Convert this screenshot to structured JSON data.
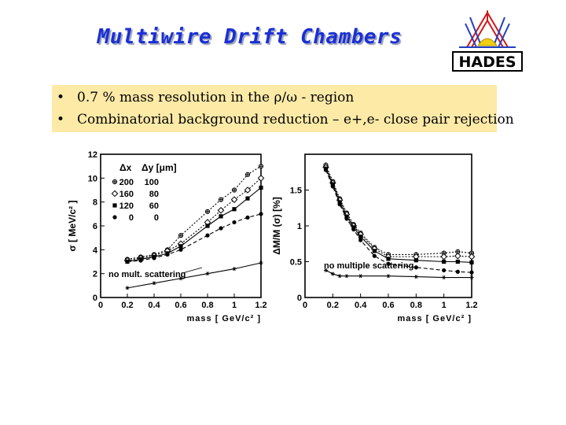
{
  "slide": {
    "title": "Multiwire Drift Chambers",
    "logo_text": "HADES",
    "bullets": [
      "0.7 % mass resolution in the ρ/ω - region",
      "Combinatorial background reduction – e+,e- close pair rejection"
    ]
  },
  "colors": {
    "title": "#1a2fd6",
    "bullet_box": "#fdeaa7",
    "logo_red": "#d01818",
    "logo_yellow": "#f0d010",
    "logo_blue": "#2040c0"
  },
  "chart_data": [
    {
      "type": "line",
      "ylabel": "σ [ MeV/c² ]",
      "xlabel": "mass [ GeV/c² ]",
      "xlim": [
        0,
        1.2
      ],
      "ylim": [
        0,
        12
      ],
      "xticks": [
        "0",
        "0.2",
        "0.4",
        "0.6",
        "0.8",
        "1",
        "1.2"
      ],
      "yticks": [
        "0",
        "2",
        "4",
        "6",
        "8",
        "10",
        "12"
      ],
      "legend_header": [
        "Δx",
        "Δy [μm]"
      ],
      "legend": [
        {
          "dx": "200",
          "dy": "100",
          "marker": "open-cross"
        },
        {
          "dx": "160",
          "dy": "80",
          "marker": "open-diamond"
        },
        {
          "dx": "120",
          "dy": "60",
          "marker": "filled-square"
        },
        {
          "dx": "0",
          "dy": "0",
          "marker": "filled-circle"
        }
      ],
      "annotation": "no mult. scattering",
      "series": [
        {
          "marker": "open-cross",
          "dash": "dot",
          "x": [
            0.2,
            0.3,
            0.4,
            0.5,
            0.6,
            0.8,
            0.9,
            1.0,
            1.1,
            1.2
          ],
          "y": [
            3.2,
            3.4,
            3.6,
            4.0,
            5.2,
            7.2,
            8.2,
            9.0,
            10.3,
            11.0
          ]
        },
        {
          "marker": "open-diamond",
          "dash": "dot",
          "x": [
            0.2,
            0.3,
            0.4,
            0.5,
            0.6,
            0.8,
            0.9,
            1.0,
            1.1,
            1.2
          ],
          "y": [
            3.1,
            3.3,
            3.5,
            3.9,
            4.5,
            6.3,
            7.3,
            8.2,
            9.0,
            10.0
          ]
        },
        {
          "marker": "filled-square",
          "dash": "solid",
          "x": [
            0.2,
            0.3,
            0.4,
            0.5,
            0.6,
            0.8,
            0.9,
            1.0,
            1.1,
            1.2
          ],
          "y": [
            3.0,
            3.2,
            3.4,
            3.7,
            4.3,
            6.0,
            6.8,
            7.4,
            8.3,
            9.2
          ]
        },
        {
          "marker": "filled-circle",
          "dash": "dash",
          "x": [
            0.2,
            0.3,
            0.4,
            0.5,
            0.6,
            0.8,
            0.9,
            1.0,
            1.1,
            1.2
          ],
          "y": [
            3.0,
            3.1,
            3.3,
            3.6,
            4.0,
            5.2,
            5.8,
            6.3,
            6.7,
            7.0
          ]
        },
        {
          "marker": "star",
          "dash": "solid",
          "x": [
            0.2,
            0.4,
            0.6,
            0.8,
            1.0,
            1.2
          ],
          "y": [
            0.8,
            1.2,
            1.6,
            2.0,
            2.4,
            2.9
          ]
        }
      ]
    },
    {
      "type": "line",
      "ylabel": "ΔM/M (σ) [%]",
      "xlabel": "mass [ GeV/c² ]",
      "xlim": [
        0,
        1.2
      ],
      "ylim": [
        0,
        2.0
      ],
      "xticks": [
        "0",
        "0.2",
        "0.4",
        "0.6",
        "0.8",
        "1",
        "1.2"
      ],
      "yticks": [
        "0",
        "0.5",
        "1",
        "1.5"
      ],
      "annotation": "no multiple scattering",
      "series": [
        {
          "marker": "open-cross",
          "dash": "dot",
          "x": [
            0.15,
            0.2,
            0.25,
            0.3,
            0.35,
            0.4,
            0.5,
            0.6,
            0.8,
            1.0,
            1.1,
            1.2
          ],
          "y": [
            1.85,
            1.62,
            1.38,
            1.18,
            1.02,
            0.9,
            0.7,
            0.6,
            0.6,
            0.62,
            0.64,
            0.62
          ]
        },
        {
          "marker": "open-diamond",
          "dash": "dot",
          "x": [
            0.15,
            0.2,
            0.25,
            0.3,
            0.35,
            0.4,
            0.5,
            0.6,
            0.8,
            1.0,
            1.1,
            1.2
          ],
          "y": [
            1.82,
            1.6,
            1.36,
            1.16,
            1.0,
            0.88,
            0.68,
            0.57,
            0.57,
            0.57,
            0.58,
            0.57
          ]
        },
        {
          "marker": "filled-square",
          "dash": "solid",
          "x": [
            0.15,
            0.2,
            0.25,
            0.3,
            0.35,
            0.4,
            0.5,
            0.6,
            0.8,
            1.0,
            1.1,
            1.2
          ],
          "y": [
            1.8,
            1.58,
            1.33,
            1.13,
            0.98,
            0.85,
            0.65,
            0.54,
            0.52,
            0.5,
            0.5,
            0.49
          ]
        },
        {
          "marker": "filled-circle",
          "dash": "dash",
          "x": [
            0.15,
            0.2,
            0.25,
            0.3,
            0.35,
            0.4,
            0.5,
            0.6,
            0.8,
            1.0,
            1.1,
            1.2
          ],
          "y": [
            1.78,
            1.55,
            1.3,
            1.1,
            0.95,
            0.8,
            0.58,
            0.47,
            0.42,
            0.38,
            0.36,
            0.35
          ]
        },
        {
          "marker": "star",
          "dash": "solid",
          "x": [
            0.15,
            0.2,
            0.25,
            0.3,
            0.4,
            0.6,
            0.8,
            1.0,
            1.2
          ],
          "y": [
            0.38,
            0.33,
            0.3,
            0.3,
            0.3,
            0.3,
            0.29,
            0.28,
            0.28
          ]
        }
      ]
    }
  ]
}
